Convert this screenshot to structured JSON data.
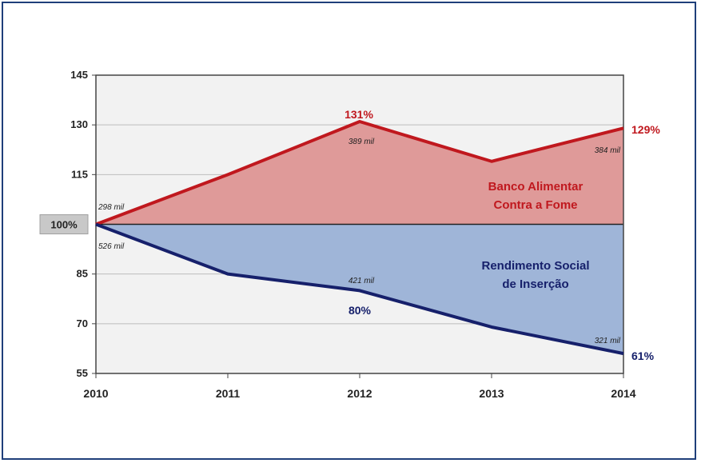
{
  "chart_data": {
    "type": "area",
    "x": [
      2010,
      2011,
      2012,
      2013,
      2014
    ],
    "x_tick_labels": [
      "2010",
      "2011",
      "2012",
      "2013",
      "2014"
    ],
    "y_ticks": [
      55,
      70,
      85,
      115,
      130,
      145
    ],
    "y_tick_labels": [
      "55",
      "70",
      "85",
      "115",
      "130",
      "145"
    ],
    "ylim": [
      55,
      145
    ],
    "baseline": {
      "value": 100,
      "label": "100%"
    },
    "grid": true,
    "series": [
      {
        "name": "Banco Alimentar Contra a Fome",
        "label_lines": [
          "Banco Alimentar",
          "Contra a Fome"
        ],
        "values": [
          100,
          115,
          131,
          119,
          129
        ],
        "line_color": "#c0181e",
        "fill_color": "#df9a99",
        "point_labels": [
          {
            "x": 2010,
            "text": "298 mil"
          },
          {
            "x": 2012,
            "text": "131%"
          },
          {
            "x": 2012,
            "text": "389 mil"
          },
          {
            "x": 2014,
            "text": "384 mil"
          },
          {
            "x": 2014,
            "text": "129%"
          }
        ]
      },
      {
        "name": "Rendimento Social de Inserção",
        "label_lines": [
          "Rendimento Social",
          "de Inserção"
        ],
        "values": [
          100,
          85,
          80,
          69,
          61
        ],
        "line_color": "#16206b",
        "fill_color": "#9fb5d8",
        "point_labels": [
          {
            "x": 2010,
            "text": "526 mil"
          },
          {
            "x": 2012,
            "text": "421 mil"
          },
          {
            "x": 2012,
            "text": "80%"
          },
          {
            "x": 2014,
            "text": "321 mil"
          },
          {
            "x": 2014,
            "text": "61%"
          }
        ]
      }
    ]
  }
}
